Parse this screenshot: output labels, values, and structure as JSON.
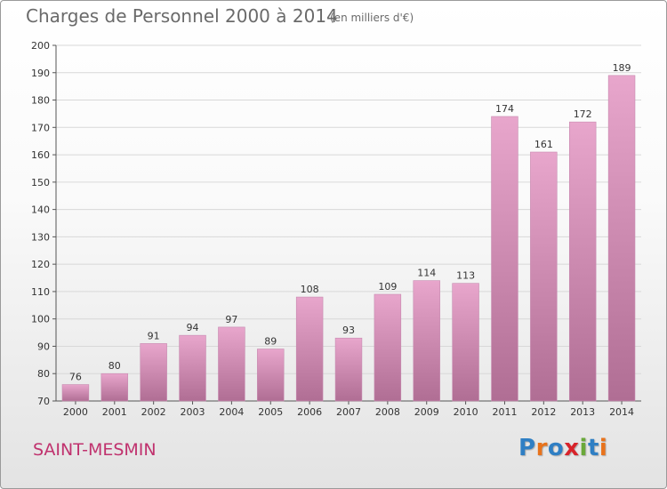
{
  "header": {
    "title": "Charges de Personnel 2000 à 2014",
    "subtitle": "(en milliers d'€)"
  },
  "footer": {
    "town": "SAINT-MESMIN",
    "logo_text": "Proxiti"
  },
  "colors": {
    "bar_light": "#e8a6cc",
    "bar_dark": "#b06e94",
    "town": "#c0326e",
    "grid": "#d8d8d8",
    "logo": [
      "#2f7fc4",
      "#e8731c",
      "#2f7fc4",
      "#d8232a",
      "#6aa83a",
      "#2f7fc4",
      "#e8731c"
    ]
  },
  "chart_data": {
    "type": "bar",
    "categories": [
      "2000",
      "2001",
      "2002",
      "2003",
      "2004",
      "2005",
      "2006",
      "2007",
      "2008",
      "2009",
      "2010",
      "2011",
      "2012",
      "2013",
      "2014"
    ],
    "values": [
      76,
      80,
      91,
      94,
      97,
      89,
      108,
      93,
      109,
      114,
      113,
      174,
      161,
      172,
      189
    ],
    "ylim": [
      70,
      200
    ],
    "yticks": [
      70,
      80,
      90,
      100,
      110,
      120,
      130,
      140,
      150,
      160,
      170,
      180,
      190,
      200
    ],
    "grid": true,
    "xlabel": "",
    "ylabel": ""
  }
}
